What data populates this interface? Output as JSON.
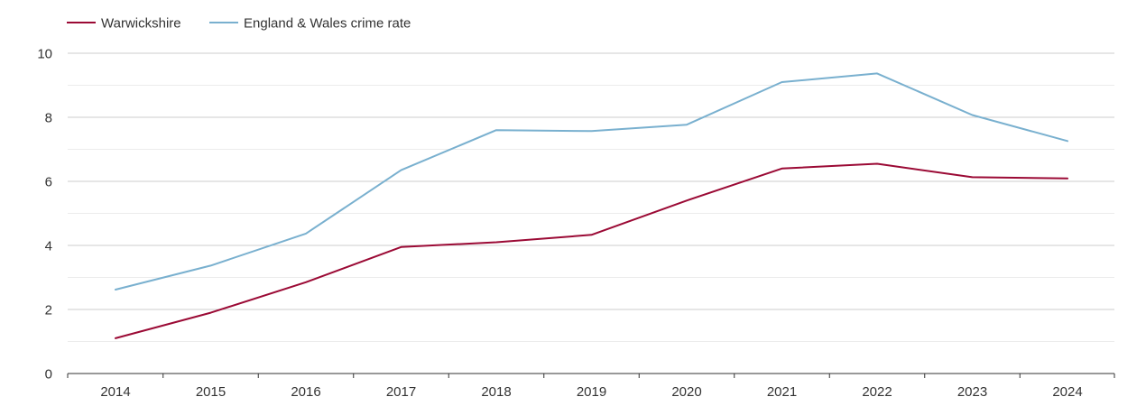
{
  "chart_data": {
    "type": "line",
    "title": "",
    "xlabel": "",
    "ylabel": "",
    "x": [
      "2014",
      "2015",
      "2016",
      "2017",
      "2018",
      "2019",
      "2020",
      "2021",
      "2022",
      "2023",
      "2024"
    ],
    "ylim": [
      0,
      10
    ],
    "yticks": [
      "0",
      "2",
      "4",
      "6",
      "8",
      "10"
    ],
    "grid": true,
    "legend_position": "top-left",
    "series": [
      {
        "name": "Warwickshire",
        "color": "#9b0a35",
        "values": [
          1.1,
          1.9,
          2.85,
          3.95,
          4.1,
          4.33,
          5.4,
          6.4,
          6.55,
          6.13,
          6.09
        ]
      },
      {
        "name": "England & Wales crime rate",
        "color": "#79b0cf",
        "values": [
          2.62,
          3.37,
          4.37,
          6.35,
          7.6,
          7.57,
          7.77,
          9.1,
          9.37,
          8.07,
          7.26
        ]
      }
    ]
  }
}
